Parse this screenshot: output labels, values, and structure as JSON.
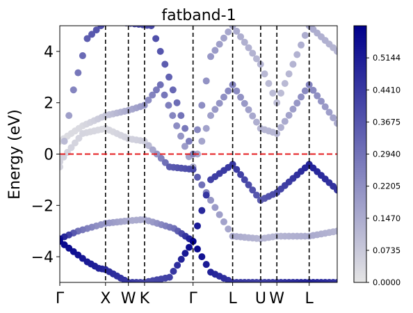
{
  "chart_data": {
    "type": "scatter",
    "title": "fatband-1",
    "ylabel": "Energy (eV)",
    "xlabel": "",
    "ylim": [
      -5,
      5
    ],
    "y_ticks": [
      {
        "value": 4,
        "label": "4"
      },
      {
        "value": 2,
        "label": "2"
      },
      {
        "value": 0,
        "label": "0"
      },
      {
        "value": -2,
        "label": "−2"
      },
      {
        "value": -4,
        "label": "−4"
      }
    ],
    "kpath": [
      {
        "label": "Γ",
        "pos": 0.0
      },
      {
        "label": "X",
        "pos": 1.0
      },
      {
        "label": "W",
        "pos": 1.5
      },
      {
        "label": "K",
        "pos": 1.8536
      },
      {
        "label": "Γ",
        "pos": 2.914
      },
      {
        "label": "L",
        "pos": 3.78
      },
      {
        "label": "U",
        "pos": 4.393
      },
      {
        "label": "W",
        "pos": 4.747
      },
      {
        "label": "L",
        "pos": 5.454
      }
    ],
    "xlim": [
      0,
      6.067
    ],
    "fermi_level": 0,
    "grid": false,
    "colorbar": {
      "vmin": 0.0,
      "vmax": 0.588,
      "tick_labels": [
        "0.0000",
        "0.0735",
        "0.1470",
        "0.2205",
        "0.2940",
        "0.3675",
        "0.4410",
        "0.5144"
      ],
      "colors": [
        "#e5e5e5",
        "#00008b"
      ]
    },
    "bands": [
      {
        "name": "band-1",
        "points": [
          [
            0.0,
            -3.4,
            0.58
          ],
          [
            0.3,
            -3.8,
            0.55
          ],
          [
            0.6,
            -4.2,
            0.52
          ],
          [
            0.85,
            -4.45,
            0.5
          ],
          [
            1.0,
            -4.5,
            0.48
          ],
          [
            1.5,
            -5.0,
            0.45
          ],
          [
            1.85,
            -5.0,
            0.4
          ],
          [
            2.4,
            -4.8,
            0.42
          ],
          [
            2.914,
            -3.4,
            0.58
          ],
          [
            3.3,
            -4.6,
            0.5
          ],
          [
            3.78,
            -5.0,
            0.45
          ],
          [
            4.39,
            -5.0,
            0.42
          ],
          [
            4.747,
            -5.0,
            0.45
          ],
          [
            5.454,
            -5.0,
            0.5
          ],
          [
            6.067,
            -5.0,
            0.45
          ]
        ]
      },
      {
        "name": "band-2",
        "points": [
          [
            0.0,
            -3.3,
            0.55
          ],
          [
            0.4,
            -3.0,
            0.3
          ],
          [
            0.8,
            -2.8,
            0.22
          ],
          [
            1.0,
            -2.7,
            0.2
          ],
          [
            1.5,
            -2.6,
            0.15
          ],
          [
            1.85,
            -2.55,
            0.15
          ],
          [
            2.5,
            -2.9,
            0.3
          ],
          [
            2.914,
            -3.4,
            0.55
          ],
          [
            3.3,
            -1.0,
            0.42
          ],
          [
            3.78,
            -0.4,
            0.45
          ],
          [
            4.39,
            -1.8,
            0.35
          ],
          [
            4.747,
            -1.5,
            0.4
          ],
          [
            5.454,
            -0.4,
            0.5
          ],
          [
            6.067,
            -1.4,
            0.45
          ]
        ]
      },
      {
        "name": "band-3",
        "points": [
          [
            0.0,
            -0.3,
            0.05
          ],
          [
            0.5,
            0.8,
            0.04
          ],
          [
            1.0,
            1.0,
            0.03
          ],
          [
            1.5,
            0.6,
            0.05
          ],
          [
            1.85,
            0.5,
            0.06
          ],
          [
            2.4,
            -0.5,
            0.35
          ],
          [
            2.914,
            -0.6,
            0.4
          ],
          [
            3.3,
            -1.8,
            0.2
          ],
          [
            3.78,
            -3.2,
            0.15
          ],
          [
            4.39,
            -3.3,
            0.12
          ],
          [
            4.747,
            -3.2,
            0.12
          ],
          [
            5.454,
            -3.2,
            0.15
          ],
          [
            6.067,
            -3.0,
            0.12
          ]
        ]
      },
      {
        "name": "band-4",
        "points": [
          [
            0.0,
            0.5,
            0.02
          ],
          [
            0.5,
            1.1,
            0.03
          ],
          [
            1.0,
            1.5,
            0.08
          ],
          [
            1.5,
            1.7,
            0.15
          ],
          [
            1.85,
            1.9,
            0.2
          ],
          [
            2.2,
            2.7,
            0.3
          ],
          [
            2.914,
            -0.5,
            0.15
          ],
          [
            3.3,
            1.5,
            0.18
          ],
          [
            3.78,
            2.7,
            0.25
          ],
          [
            4.39,
            1.0,
            0.12
          ],
          [
            4.747,
            0.8,
            0.12
          ],
          [
            5.454,
            2.7,
            0.25
          ],
          [
            6.067,
            1.2,
            0.15
          ]
        ]
      },
      {
        "name": "band-5",
        "points": [
          [
            0.0,
            -0.5,
            0.04
          ],
          [
            0.3,
            2.5,
            0.25
          ],
          [
            0.6,
            4.5,
            0.35
          ],
          [
            0.9,
            5.0,
            0.38
          ],
          [
            1.0,
            5.2,
            0.38
          ],
          [
            2.0,
            5.0,
            0.4
          ],
          [
            2.3,
            3.5,
            0.35
          ],
          [
            2.914,
            0.0,
            0.25
          ],
          [
            3.3,
            3.8,
            0.2
          ],
          [
            3.78,
            5.0,
            0.15
          ],
          [
            4.39,
            3.5,
            0.12
          ],
          [
            4.747,
            2.0,
            0.1
          ],
          [
            5.454,
            5.0,
            0.15
          ],
          [
            6.067,
            4.0,
            0.12
          ]
        ]
      }
    ]
  }
}
